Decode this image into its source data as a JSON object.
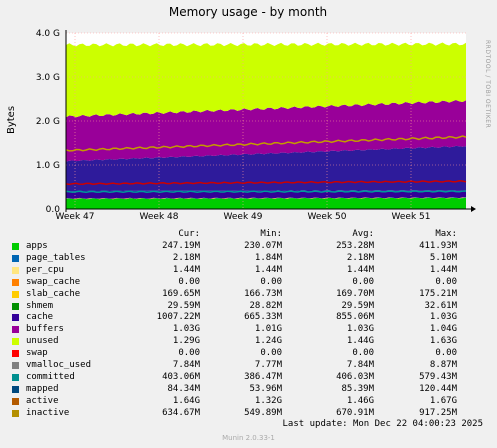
{
  "chart_data": {
    "type": "area",
    "title": "Memory usage - by month",
    "ylabel": "Bytes",
    "ylim": [
      0,
      4.0
    ],
    "y_unit": "G",
    "y_ticks": [
      "0.0",
      "1.0 G",
      "2.0 G",
      "3.0 G",
      "4.0 G"
    ],
    "x_ticks": [
      "Week 47",
      "Week 48",
      "Week 49",
      "Week 50",
      "Week 51"
    ],
    "grid": true,
    "stack_order": [
      "apps",
      "page_tables",
      "per_cpu",
      "swap_cache",
      "slab_cache",
      "cache",
      "buffers",
      "unused"
    ],
    "series": [
      {
        "name": "apps",
        "color": "#00cc00",
        "stacked": true,
        "start_g": 0.23,
        "end_g": 0.25
      },
      {
        "name": "page_tables",
        "color": "#0066b3",
        "stacked": true,
        "start_g": 0.002,
        "end_g": 0.002
      },
      {
        "name": "per_cpu",
        "color": "#ff8000",
        "stacked": true,
        "start_g": 0.001,
        "end_g": 0.001
      },
      {
        "name": "swap_cache",
        "color": "#ffcc00",
        "stacked": true,
        "start_g": 0.0,
        "end_g": 0.0
      },
      {
        "name": "slab_cache",
        "color": "#330099",
        "stacked": true,
        "start_g": 0.17,
        "end_g": 0.17
      },
      {
        "name": "cache",
        "color": "#2e1b9b",
        "stacked": true,
        "start_g": 0.68,
        "end_g": 1.0
      },
      {
        "name": "buffers",
        "color": "#990099",
        "stacked": true,
        "start_g": 1.01,
        "end_g": 1.03
      },
      {
        "name": "unused",
        "color": "#ccff00",
        "stacked": true,
        "start_g": 1.63,
        "end_g": 1.29
      },
      {
        "name": "committed",
        "color": "#009999",
        "stacked": false,
        "start_g": 0.39,
        "end_g": 0.4
      },
      {
        "name": "active",
        "color": "#c49a00",
        "stacked": false,
        "start_g": 1.33,
        "end_g": 1.64
      },
      {
        "name": "inactive",
        "color": "#cc0000",
        "stacked": false,
        "start_g": 0.57,
        "end_g": 0.63
      }
    ]
  },
  "legend": {
    "headers": {
      "cur": "Cur:",
      "min": "Min:",
      "avg": "Avg:",
      "max": "Max:"
    },
    "rows": [
      {
        "name": "apps",
        "color": "#00cc00",
        "cur": "247.19M",
        "min": "230.07M",
        "avg": "253.28M",
        "max": "411.93M"
      },
      {
        "name": "page_tables",
        "color": "#0066b3",
        "cur": "2.18M",
        "min": "1.84M",
        "avg": "2.18M",
        "max": "5.10M"
      },
      {
        "name": "per_cpu",
        "color": "#ffe680",
        "cur": "1.44M",
        "min": "1.44M",
        "avg": "1.44M",
        "max": "1.44M"
      },
      {
        "name": "swap_cache",
        "color": "#ff8000",
        "cur": "0.00",
        "min": "0.00",
        "avg": "0.00",
        "max": "0.00"
      },
      {
        "name": "slab_cache",
        "color": "#ffcc00",
        "cur": "169.65M",
        "min": "166.73M",
        "avg": "169.70M",
        "max": "175.21M"
      },
      {
        "name": "shmem",
        "color": "#008f00",
        "cur": "29.59M",
        "min": "28.82M",
        "avg": "29.59M",
        "max": "32.61M"
      },
      {
        "name": "cache",
        "color": "#330099",
        "cur": "1007.22M",
        "min": "665.33M",
        "avg": "855.06M",
        "max": "1.03G"
      },
      {
        "name": "buffers",
        "color": "#990099",
        "cur": "1.03G",
        "min": "1.01G",
        "avg": "1.03G",
        "max": "1.04G"
      },
      {
        "name": "unused",
        "color": "#ccff00",
        "cur": "1.29G",
        "min": "1.24G",
        "avg": "1.44G",
        "max": "1.63G"
      },
      {
        "name": "swap",
        "color": "#ff0000",
        "cur": "0.00",
        "min": "0.00",
        "avg": "0.00",
        "max": "0.00"
      },
      {
        "name": "vmalloc_used",
        "color": "#808080",
        "cur": "7.84M",
        "min": "7.77M",
        "avg": "7.84M",
        "max": "8.87M"
      },
      {
        "name": "committed",
        "color": "#008f8f",
        "cur": "403.06M",
        "min": "386.47M",
        "avg": "406.03M",
        "max": "579.43M"
      },
      {
        "name": "mapped",
        "color": "#00487d",
        "cur": "84.34M",
        "min": "53.96M",
        "avg": "85.39M",
        "max": "120.44M"
      },
      {
        "name": "active",
        "color": "#b35a00",
        "cur": "1.64G",
        "min": "1.32G",
        "avg": "1.46G",
        "max": "1.67G"
      },
      {
        "name": "inactive",
        "color": "#b38f00",
        "cur": "634.67M",
        "min": "549.89M",
        "avg": "670.91M",
        "max": "917.25M"
      }
    ]
  },
  "footer": {
    "last_update": "Last update:  Mon Dec 22 04:00:23 2025"
  },
  "side_label": "RRDTOOL / TOBI OETIKER",
  "munin_version": "Munin 2.0.33-1"
}
